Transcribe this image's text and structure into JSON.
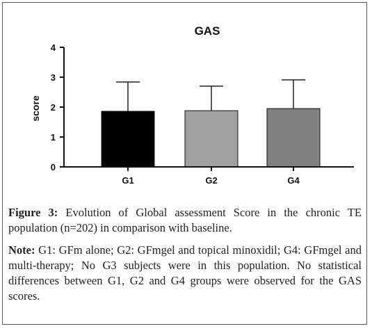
{
  "chart_data": {
    "type": "bar",
    "title": "GAS",
    "xlabel": "",
    "ylabel": "score",
    "categories": [
      "G1",
      "G2",
      "G4"
    ],
    "values": [
      1.86,
      1.88,
      1.95
    ],
    "error_upper": [
      2.84,
      2.7,
      2.91
    ],
    "colors": [
      "#000000",
      "#a0a0a0",
      "#808080"
    ],
    "ylim": [
      0,
      4
    ],
    "yticks": [
      0,
      1,
      2,
      3,
      4
    ],
    "grid": false
  },
  "caption": {
    "figure_label": "Figure 3:",
    "figure_text": " Evolution of Global assessment Score in the chronic TE population (n=202) in comparison with baseline.",
    "note_label": "Note:",
    "note_text": " G1: GFm alone; G2: GFmgel and topical minoxidil; G4: GFmgel and multi-therapy; No G3 subjects were in this population. No statistical differences between G1, G2 and G4 groups were observed for the GAS scores."
  }
}
